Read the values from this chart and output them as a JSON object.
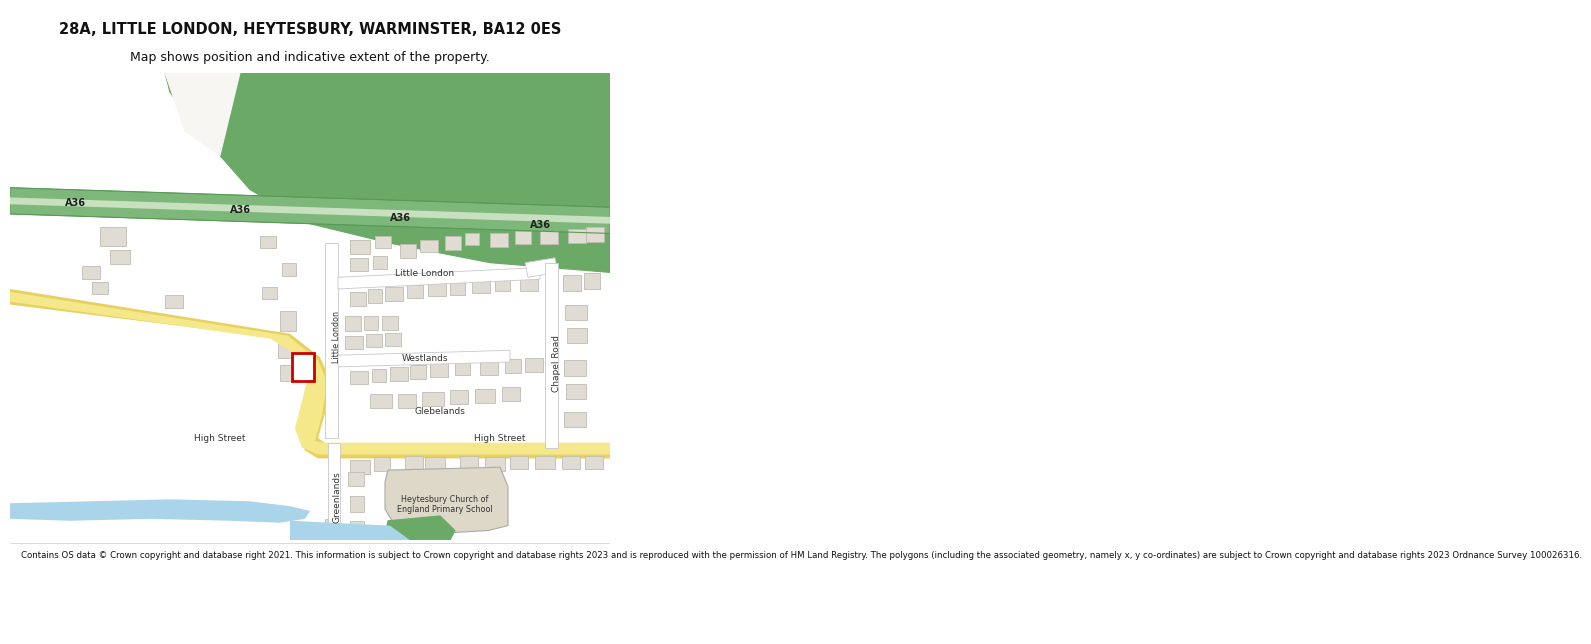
{
  "title": "28A, LITTLE LONDON, HEYTESBURY, WARMINSTER, BA12 0ES",
  "subtitle": "Map shows position and indicative extent of the property.",
  "footer": "Contains OS data © Crown copyright and database right 2021. This information is subject to Crown copyright and database rights 2023 and is reproduced with the permission of HM Land Registry. The polygons (including the associated geometry, namely x, y co-ordinates) are subject to Crown copyright and database rights 2023 Ordnance Survey 100026316.",
  "bg_color": "#ffffff",
  "map_bg": "#f8f6f2",
  "road_a36_color": "#7db87a",
  "road_a36_light": "#c8e0c0",
  "road_a36_dark": "#5a9a57",
  "road_yellow_color": "#f5e88a",
  "road_yellow_border": "#e8d060",
  "building_color": "#e0dcd4",
  "building_border": "#c0bcb4",
  "highlight_border": "#cc0000",
  "highlight_fill": "#ffffff",
  "school_color": "#ddd8c8",
  "water_color": "#aad4ea",
  "green_dark": "#6aaa66",
  "green_light": "#a0c89a"
}
